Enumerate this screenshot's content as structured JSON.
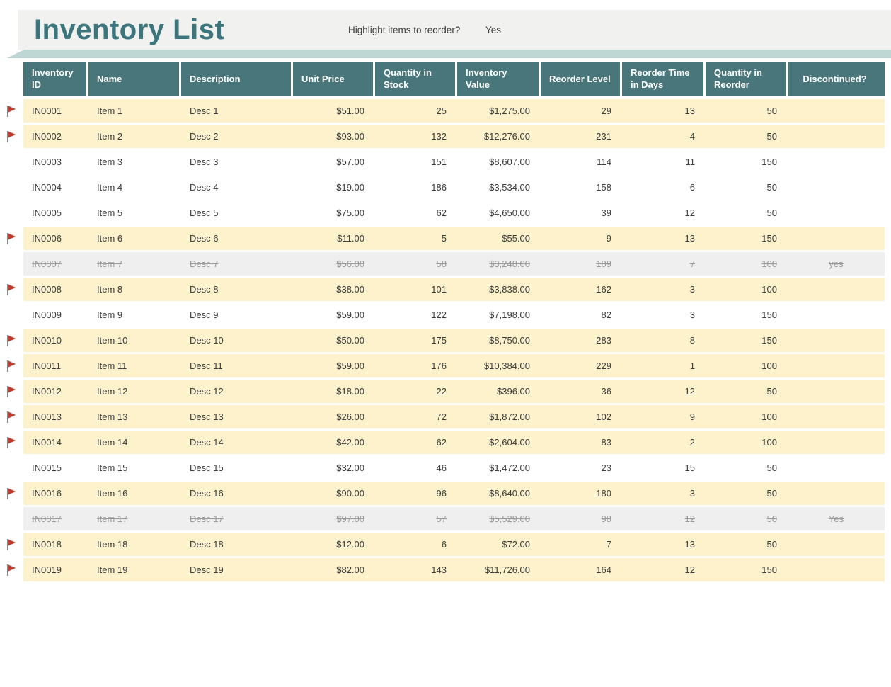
{
  "page": {
    "title": "Inventory List",
    "highlight_question": "Highlight items to reorder?",
    "highlight_answer": "Yes"
  },
  "colors": {
    "title_teal": "#3d757c",
    "band_gray": "#f1f1ef",
    "shadow_teal": "#bed7d4",
    "header_teal": "#48767b",
    "row_highlight": "#fdf2cc",
    "row_discontinued_bg": "#efefef",
    "row_discontinued_text": "#9a9a9a",
    "flag_red": "#c03e2b",
    "text_dark": "#3b3b3b"
  },
  "icons": {
    "reorder_flag": "red triangular pennant flag on gray pole"
  },
  "table": {
    "columns": [
      {
        "key": "inventory_id",
        "label": "Inventory ID",
        "data_align": "left"
      },
      {
        "key": "name",
        "label": "Name",
        "data_align": "left"
      },
      {
        "key": "description",
        "label": "Description",
        "data_align": "left"
      },
      {
        "key": "unit_price",
        "label": "Unit Price",
        "data_align": "right"
      },
      {
        "key": "quantity_in_stock",
        "label": "Quantity in Stock",
        "data_align": "right"
      },
      {
        "key": "inventory_value",
        "label": "Inventory Value",
        "data_align": "right"
      },
      {
        "key": "reorder_level",
        "label": "Reorder Level",
        "data_align": "right"
      },
      {
        "key": "reorder_time_in_days",
        "label": "Reorder Time in Days",
        "data_align": "right"
      },
      {
        "key": "quantity_in_reorder",
        "label": "Quantity in Reorder",
        "data_align": "right"
      },
      {
        "key": "discontinued",
        "label": "Discontinued?",
        "data_align": "center"
      }
    ],
    "rows": [
      {
        "inventory_id": "IN0001",
        "name": "Item 1",
        "description": "Desc 1",
        "unit_price": "$51.00",
        "quantity_in_stock": "25",
        "inventory_value": "$1,275.00",
        "reorder_level": "29",
        "reorder_time_in_days": "13",
        "quantity_in_reorder": "50",
        "discontinued": "",
        "flagged": true,
        "state": "highlight"
      },
      {
        "inventory_id": "IN0002",
        "name": "Item 2",
        "description": "Desc 2",
        "unit_price": "$93.00",
        "quantity_in_stock": "132",
        "inventory_value": "$12,276.00",
        "reorder_level": "231",
        "reorder_time_in_days": "4",
        "quantity_in_reorder": "50",
        "discontinued": "",
        "flagged": true,
        "state": "highlight"
      },
      {
        "inventory_id": "IN0003",
        "name": "Item 3",
        "description": "Desc 3",
        "unit_price": "$57.00",
        "quantity_in_stock": "151",
        "inventory_value": "$8,607.00",
        "reorder_level": "114",
        "reorder_time_in_days": "11",
        "quantity_in_reorder": "150",
        "discontinued": "",
        "flagged": false,
        "state": "normal"
      },
      {
        "inventory_id": "IN0004",
        "name": "Item 4",
        "description": "Desc 4",
        "unit_price": "$19.00",
        "quantity_in_stock": "186",
        "inventory_value": "$3,534.00",
        "reorder_level": "158",
        "reorder_time_in_days": "6",
        "quantity_in_reorder": "50",
        "discontinued": "",
        "flagged": false,
        "state": "normal"
      },
      {
        "inventory_id": "IN0005",
        "name": "Item 5",
        "description": "Desc 5",
        "unit_price": "$75.00",
        "quantity_in_stock": "62",
        "inventory_value": "$4,650.00",
        "reorder_level": "39",
        "reorder_time_in_days": "12",
        "quantity_in_reorder": "50",
        "discontinued": "",
        "flagged": false,
        "state": "normal"
      },
      {
        "inventory_id": "IN0006",
        "name": "Item 6",
        "description": "Desc 6",
        "unit_price": "$11.00",
        "quantity_in_stock": "5",
        "inventory_value": "$55.00",
        "reorder_level": "9",
        "reorder_time_in_days": "13",
        "quantity_in_reorder": "150",
        "discontinued": "",
        "flagged": true,
        "state": "highlight"
      },
      {
        "inventory_id": "IN0007",
        "name": "Item 7",
        "description": "Desc 7",
        "unit_price": "$56.00",
        "quantity_in_stock": "58",
        "inventory_value": "$3,248.00",
        "reorder_level": "109",
        "reorder_time_in_days": "7",
        "quantity_in_reorder": "100",
        "discontinued": "yes",
        "flagged": false,
        "state": "discontinued"
      },
      {
        "inventory_id": "IN0008",
        "name": "Item 8",
        "description": "Desc 8",
        "unit_price": "$38.00",
        "quantity_in_stock": "101",
        "inventory_value": "$3,838.00",
        "reorder_level": "162",
        "reorder_time_in_days": "3",
        "quantity_in_reorder": "100",
        "discontinued": "",
        "flagged": true,
        "state": "highlight"
      },
      {
        "inventory_id": "IN0009",
        "name": "Item 9",
        "description": "Desc 9",
        "unit_price": "$59.00",
        "quantity_in_stock": "122",
        "inventory_value": "$7,198.00",
        "reorder_level": "82",
        "reorder_time_in_days": "3",
        "quantity_in_reorder": "150",
        "discontinued": "",
        "flagged": false,
        "state": "normal"
      },
      {
        "inventory_id": "IN0010",
        "name": "Item 10",
        "description": "Desc 10",
        "unit_price": "$50.00",
        "quantity_in_stock": "175",
        "inventory_value": "$8,750.00",
        "reorder_level": "283",
        "reorder_time_in_days": "8",
        "quantity_in_reorder": "150",
        "discontinued": "",
        "flagged": true,
        "state": "highlight"
      },
      {
        "inventory_id": "IN0011",
        "name": "Item 11",
        "description": "Desc 11",
        "unit_price": "$59.00",
        "quantity_in_stock": "176",
        "inventory_value": "$10,384.00",
        "reorder_level": "229",
        "reorder_time_in_days": "1",
        "quantity_in_reorder": "100",
        "discontinued": "",
        "flagged": true,
        "state": "highlight"
      },
      {
        "inventory_id": "IN0012",
        "name": "Item 12",
        "description": "Desc 12",
        "unit_price": "$18.00",
        "quantity_in_stock": "22",
        "inventory_value": "$396.00",
        "reorder_level": "36",
        "reorder_time_in_days": "12",
        "quantity_in_reorder": "50",
        "discontinued": "",
        "flagged": true,
        "state": "highlight"
      },
      {
        "inventory_id": "IN0013",
        "name": "Item 13",
        "description": "Desc 13",
        "unit_price": "$26.00",
        "quantity_in_stock": "72",
        "inventory_value": "$1,872.00",
        "reorder_level": "102",
        "reorder_time_in_days": "9",
        "quantity_in_reorder": "100",
        "discontinued": "",
        "flagged": true,
        "state": "highlight"
      },
      {
        "inventory_id": "IN0014",
        "name": "Item 14",
        "description": "Desc 14",
        "unit_price": "$42.00",
        "quantity_in_stock": "62",
        "inventory_value": "$2,604.00",
        "reorder_level": "83",
        "reorder_time_in_days": "2",
        "quantity_in_reorder": "100",
        "discontinued": "",
        "flagged": true,
        "state": "highlight"
      },
      {
        "inventory_id": "IN0015",
        "name": "Item 15",
        "description": "Desc 15",
        "unit_price": "$32.00",
        "quantity_in_stock": "46",
        "inventory_value": "$1,472.00",
        "reorder_level": "23",
        "reorder_time_in_days": "15",
        "quantity_in_reorder": "50",
        "discontinued": "",
        "flagged": false,
        "state": "normal"
      },
      {
        "inventory_id": "IN0016",
        "name": "Item 16",
        "description": "Desc 16",
        "unit_price": "$90.00",
        "quantity_in_stock": "96",
        "inventory_value": "$8,640.00",
        "reorder_level": "180",
        "reorder_time_in_days": "3",
        "quantity_in_reorder": "50",
        "discontinued": "",
        "flagged": true,
        "state": "highlight"
      },
      {
        "inventory_id": "IN0017",
        "name": "Item 17",
        "description": "Desc 17",
        "unit_price": "$97.00",
        "quantity_in_stock": "57",
        "inventory_value": "$5,529.00",
        "reorder_level": "98",
        "reorder_time_in_days": "12",
        "quantity_in_reorder": "50",
        "discontinued": "Yes",
        "flagged": false,
        "state": "discontinued"
      },
      {
        "inventory_id": "IN0018",
        "name": "Item 18",
        "description": "Desc 18",
        "unit_price": "$12.00",
        "quantity_in_stock": "6",
        "inventory_value": "$72.00",
        "reorder_level": "7",
        "reorder_time_in_days": "13",
        "quantity_in_reorder": "50",
        "discontinued": "",
        "flagged": true,
        "state": "highlight"
      },
      {
        "inventory_id": "IN0019",
        "name": "Item 19",
        "description": "Desc 19",
        "unit_price": "$82.00",
        "quantity_in_stock": "143",
        "inventory_value": "$11,726.00",
        "reorder_level": "164",
        "reorder_time_in_days": "12",
        "quantity_in_reorder": "150",
        "discontinued": "",
        "flagged": true,
        "state": "highlight"
      }
    ]
  }
}
